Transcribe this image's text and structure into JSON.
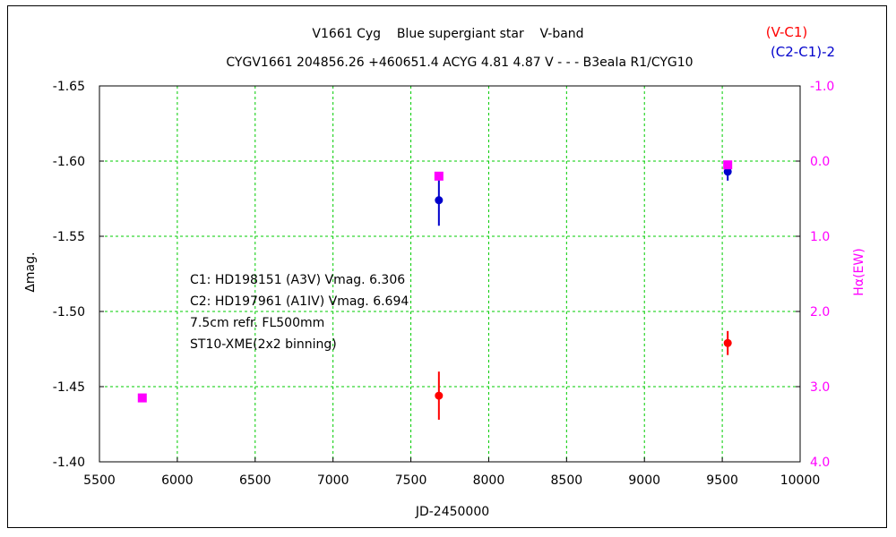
{
  "chart_data": {
    "type": "scatter",
    "title_line1": "V1661 Cyg    Blue supergiant star    V-band",
    "title_line2": "CYGV1661 204856.26 +460651.4 ACYG 4.81 4.87 V - - - B3eaIa R1/CYG10",
    "xlabel": "JD-2450000",
    "ylabel_left": "∆mag.",
    "ylabel_right": "Hα(EW)",
    "xlim": [
      5500,
      10000
    ],
    "ylim_left": [
      -1.65,
      -1.4
    ],
    "ylim_right": [
      -1.0,
      4.0
    ],
    "x_ticks": [
      "5500",
      "6000",
      "6500",
      "7000",
      "7500",
      "8000",
      "8500",
      "9000",
      "9500",
      "10000"
    ],
    "y_ticks_left": [
      "-1.65",
      "-1.60",
      "-1.55",
      "-1.50",
      "-1.45",
      "-1.40"
    ],
    "y_ticks_right": [
      "-1.0",
      "0.0",
      "1.0",
      "2.0",
      "3.0",
      "4.0"
    ],
    "grid": true,
    "legend": [
      {
        "label": "(V-C1)",
        "color": "#ff0000"
      },
      {
        "label": "(C2-C1)-2",
        "color": "#0000cc"
      }
    ],
    "annotations": [
      "C1: HD198151 (A3V) Vmag. 6.306",
      "C2: HD197961 (A1IV) Vmag. 6.694",
      "7.5cm refr. FL500mm",
      "ST10-XME(2x2 binning)"
    ],
    "series": [
      {
        "name": "(V-C1)",
        "axis": "left",
        "color": "#ff0000",
        "marker": "circle",
        "points": [
          {
            "x": 7680,
            "y": -1.444,
            "err": 0.016
          },
          {
            "x": 9535,
            "y": -1.479,
            "err": 0.008
          }
        ]
      },
      {
        "name": "(C2-C1)-2",
        "axis": "left",
        "color": "#0000cc",
        "marker": "circle",
        "points": [
          {
            "x": 7680,
            "y": -1.574,
            "err": 0.017
          },
          {
            "x": 9535,
            "y": -1.593,
            "err": 0.006
          }
        ]
      },
      {
        "name": "Hα(EW)",
        "axis": "right",
        "color": "#ff00ff",
        "marker": "square",
        "points": [
          {
            "x": 5775,
            "y": 3.15
          },
          {
            "x": 7680,
            "y": 0.2
          },
          {
            "x": 9535,
            "y": 0.05
          }
        ]
      }
    ]
  }
}
